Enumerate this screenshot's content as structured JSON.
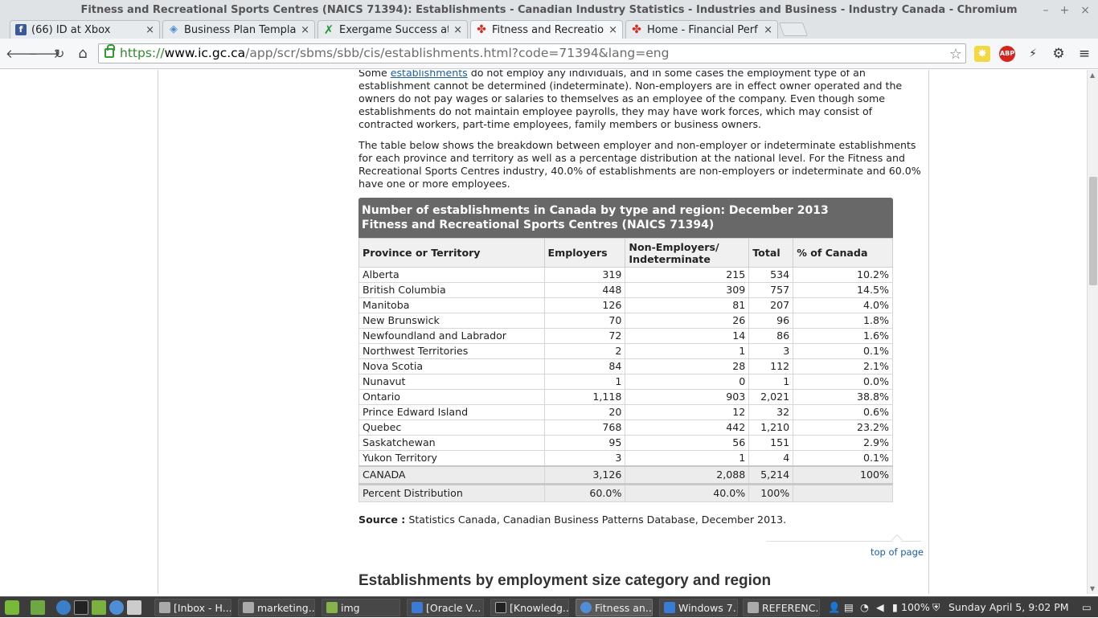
{
  "window": {
    "title": "Fitness and Recreational Sports Centres (NAICS 71394): Establishments - Canadian Industry Statistics - Industries and Business - Industry Canada - Chromium",
    "controls": [
      "–",
      "+",
      "×"
    ]
  },
  "tabs": [
    {
      "title": "(66) ID at Xbox",
      "icon": "facebook-icon"
    },
    {
      "title": "Business Plan Templa",
      "icon": "diamond-icon"
    },
    {
      "title": "Exergame Success at",
      "icon": "x-icon"
    },
    {
      "title": "Fitness and Recreatio",
      "icon": "maple-leaf-icon"
    },
    {
      "title": "Home - Financial Perf",
      "icon": "maple-leaf-icon"
    }
  ],
  "tab_close": "×",
  "toolbar": {
    "url_scheme": "https://",
    "url_host": "www.ic.gc.ca",
    "url_path": "/app/scr/sbms/sbb/cis/establishments.html?code=71394&lang=eng",
    "back": "🡐",
    "forward": "🡒",
    "reload": "↻",
    "home": "⌂",
    "star": "☆",
    "menu": "≡",
    "abp": "ABP"
  },
  "page": {
    "para1_pre": "Some ",
    "para1_link": "establishments",
    "para1_post": " do not employ any individuals, and in some cases the employment type of an establishment cannot be determined (indeterminate). Non-employers are in effect owner operated and the owners do not pay wages or salaries to themselves as an employee of the company. Even though some establishments do not maintain employee payrolls, they may have work forces, which may consist of contracted workers, part-time employees, family members or business owners.",
    "para2": "The table below shows the breakdown between employer and non-employer or indeterminate establishments for each province and territory as well as a percentage distribution at the national level. For the Fitness and Recreational Sports Centres industry, 40.0% of establishments are non-employers or indeterminate and 60.0% have one or more employees.",
    "table": {
      "caption_line1": "Number of establishments in Canada by type and region: December 2013",
      "caption_line2": "Fitness and Recreational Sports Centres (NAICS 71394)",
      "headers": [
        "Province or Territory",
        "Employers",
        "Non-Employers/ Indeterminate",
        "Total",
        "% of Canada"
      ],
      "rows": [
        [
          "Alberta",
          "319",
          "215",
          "534",
          "10.2%"
        ],
        [
          "British Columbia",
          "448",
          "309",
          "757",
          "14.5%"
        ],
        [
          "Manitoba",
          "126",
          "81",
          "207",
          "4.0%"
        ],
        [
          "New Brunswick",
          "70",
          "26",
          "96",
          "1.8%"
        ],
        [
          "Newfoundland and Labrador",
          "72",
          "14",
          "86",
          "1.6%"
        ],
        [
          "Northwest Territories",
          "2",
          "1",
          "3",
          "0.1%"
        ],
        [
          "Nova Scotia",
          "84",
          "28",
          "112",
          "2.1%"
        ],
        [
          "Nunavut",
          "1",
          "0",
          "1",
          "0.0%"
        ],
        [
          "Ontario",
          "1,118",
          "903",
          "2,021",
          "38.8%"
        ],
        [
          "Prince Edward Island",
          "20",
          "12",
          "32",
          "0.6%"
        ],
        [
          "Quebec",
          "768",
          "442",
          "1,210",
          "23.2%"
        ],
        [
          "Saskatchewan",
          "95",
          "56",
          "151",
          "2.9%"
        ],
        [
          "Yukon Territory",
          "3",
          "1",
          "4",
          "0.1%"
        ]
      ],
      "total_row": [
        "CANADA",
        "3,126",
        "2,088",
        "5,214",
        "100%"
      ],
      "percent_row": [
        "Percent Distribution",
        "60.0%",
        "40.0%",
        "100%",
        ""
      ]
    },
    "source_label": "Source :",
    "source_text": " Statistics Canada, Canadian Business Patterns Database, December 2013.",
    "top_of_page": "top of page",
    "next_heading": "Establishments by employment size category and region"
  },
  "taskbar": {
    "tasks": [
      {
        "label": "[Inbox - H..."
      },
      {
        "label": "marketing..."
      },
      {
        "label": "img"
      },
      {
        "label": "[Oracle V..."
      },
      {
        "label": "[Knowledg..."
      },
      {
        "label": "Fitness an..."
      },
      {
        "label": "Windows 7..."
      },
      {
        "label": "REFERENC..."
      }
    ],
    "battery": "100%",
    "clock": "Sunday April  5,  9:02 PM"
  }
}
